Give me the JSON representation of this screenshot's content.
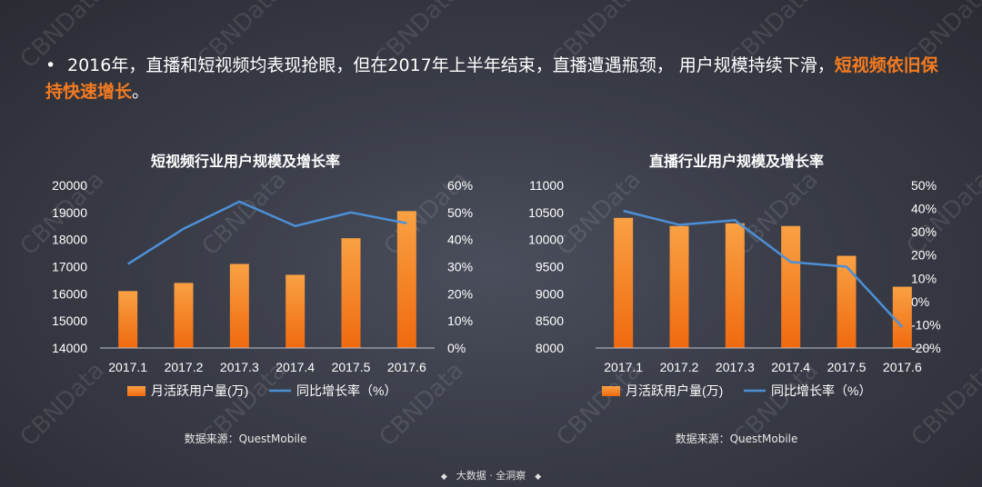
{
  "watermark_text": "CBNData",
  "headline": {
    "bullet": "•",
    "normal_text": "2016年，直播和短视频均表现抢眼，但在2017年上半年结束，直播遭遇瓶颈， 用户规模持续下滑，",
    "highlight_text": "短视频依旧保持快速增长",
    "end_text": "。",
    "highlight_color": "#f47b20"
  },
  "colors": {
    "bar_top": "#f9a144",
    "bar_bottom": "#f06a0f",
    "line": "#4d8fd6",
    "axis": "#bfc3cc"
  },
  "chart_data": [
    {
      "type": "bar",
      "title": "短视频行业用户规模及增长率",
      "categories": [
        "2017.1",
        "2017.2",
        "2017.3",
        "2017.4",
        "2017.5",
        "2017.6"
      ],
      "series": [
        {
          "name": "月活跃用户量(万)",
          "type": "bar",
          "axis": "left",
          "values": [
            16100,
            16400,
            17100,
            16700,
            18050,
            19050
          ]
        },
        {
          "name": "同比增长率（%）",
          "type": "line",
          "axis": "right",
          "values": [
            31,
            44,
            54,
            45,
            50,
            46
          ]
        }
      ],
      "ylim": [
        14000,
        20000
      ],
      "yticks": [
        "20000",
        "19000",
        "18000",
        "17000",
        "16000",
        "15000",
        "14000"
      ],
      "y2lim": [
        0,
        60
      ],
      "y2ticks": [
        "60%",
        "50%",
        "40%",
        "30%",
        "20%",
        "10%",
        "0%"
      ],
      "legend": [
        "月活跃用户量(万)",
        "同比增长率（%）"
      ],
      "source": "数据来源：QuestMobile"
    },
    {
      "type": "bar",
      "title": "直播行业用户规模及增长率",
      "categories": [
        "2017.1",
        "2017.2",
        "2017.3",
        "2017.4",
        "2017.5",
        "2017.6"
      ],
      "series": [
        {
          "name": "月活跃用户量(万)",
          "type": "bar",
          "axis": "left",
          "values": [
            10400,
            10250,
            10300,
            10250,
            9700,
            9130
          ]
        },
        {
          "name": "同比增长率（%）",
          "type": "line",
          "axis": "right",
          "values": [
            39,
            33,
            35,
            17,
            15,
            -11
          ]
        }
      ],
      "ylim": [
        8000,
        11000
      ],
      "yticks": [
        "11000",
        "10500",
        "10000",
        "9500",
        "9000",
        "8500",
        "8000"
      ],
      "y2lim": [
        -20,
        50
      ],
      "y2ticks": [
        "50%",
        "40%",
        "30%",
        "20%",
        "10%",
        "0%",
        "-10%",
        "-20%"
      ],
      "legend": [
        "月活跃用户量(万)",
        "同比增长率（%）"
      ],
      "source": "数据来源：QuestMobile"
    }
  ],
  "footer": {
    "text": "大数据 · 全洞察",
    "dot": "◆"
  }
}
